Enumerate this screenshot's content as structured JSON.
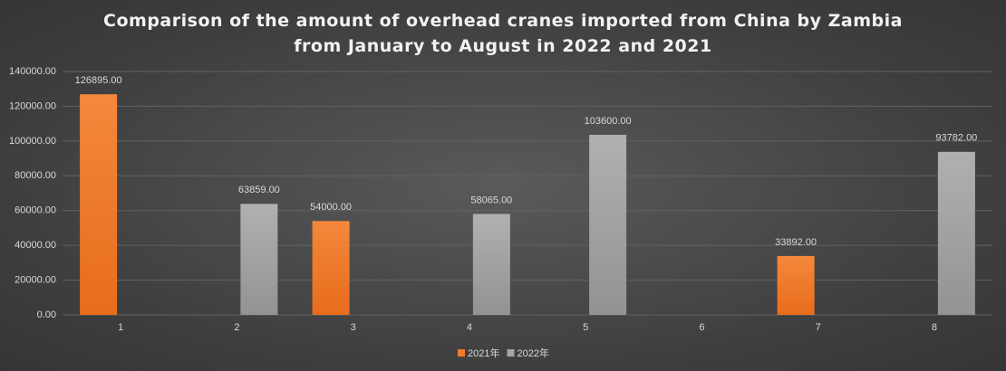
{
  "chart_data": {
    "type": "bar",
    "title": "Comparison of the amount of overhead cranes imported from China by Zambia from January to August in 2022 and 2021",
    "categories": [
      "1",
      "2",
      "3",
      "4",
      "5",
      "6",
      "7",
      "8"
    ],
    "series": [
      {
        "name": "2021年",
        "color": "#f07a2a",
        "values": [
          126895,
          null,
          54000,
          null,
          null,
          null,
          33892,
          null
        ],
        "value_labels": [
          "126895.00",
          null,
          "54000.00",
          null,
          null,
          null,
          "33892.00",
          null
        ]
      },
      {
        "name": "2022年",
        "color": "#a6a6a6",
        "values": [
          null,
          63859,
          null,
          58065,
          103600,
          null,
          null,
          93782
        ],
        "value_labels": [
          null,
          "63859.00",
          null,
          "58065.00",
          "103600.00",
          null,
          null,
          "93782.00"
        ]
      }
    ],
    "ylim": [
      0,
      140000
    ],
    "yticks": [
      {
        "value": 0,
        "label": "0.00"
      },
      {
        "value": 20000,
        "label": "20000.00"
      },
      {
        "value": 40000,
        "label": "40000.00"
      },
      {
        "value": 60000,
        "label": "60000.00"
      },
      {
        "value": 80000,
        "label": "80000.00"
      },
      {
        "value": 100000,
        "label": "100000.00"
      },
      {
        "value": 120000,
        "label": "120000.00"
      },
      {
        "value": 140000,
        "label": "140000.00"
      }
    ],
    "grid": true,
    "legend": "bottom"
  }
}
